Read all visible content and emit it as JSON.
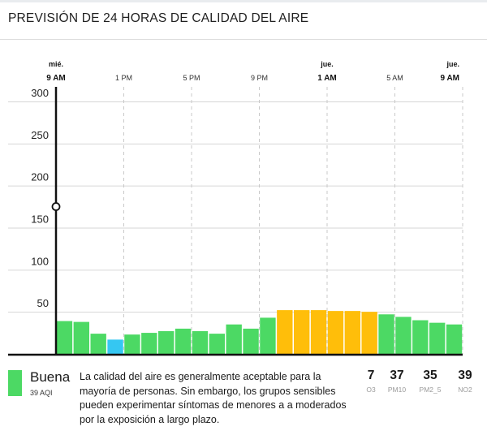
{
  "title": "PREVISIÓN DE 24 HORAS DE CALIDAD DEL AIRE",
  "chart_data": {
    "type": "bar",
    "ylim": [
      0,
      300
    ],
    "yticks": [
      50,
      100,
      150,
      200,
      250,
      300
    ],
    "xticks": [
      {
        "hour": 0,
        "day": "mié.",
        "label": "9 AM",
        "bold": true
      },
      {
        "hour": 4,
        "day": "",
        "label": "1 PM",
        "bold": false
      },
      {
        "hour": 8,
        "day": "",
        "label": "5 PM",
        "bold": false
      },
      {
        "hour": 12,
        "day": "",
        "label": "9 PM",
        "bold": false
      },
      {
        "hour": 16,
        "day": "jue.",
        "label": "1 AM",
        "bold": true
      },
      {
        "hour": 20,
        "day": "",
        "label": "5 AM",
        "bold": false
      },
      {
        "hour": 24,
        "day": "jue.",
        "label": "9 AM",
        "bold": true
      }
    ],
    "values": [
      39,
      38,
      24,
      17,
      23,
      25,
      27,
      30,
      27,
      24,
      35,
      30,
      43,
      52,
      52,
      52,
      51,
      51,
      50,
      47,
      44,
      40,
      37,
      35
    ],
    "colors": [
      "green",
      "green",
      "green",
      "blue",
      "green",
      "green",
      "green",
      "green",
      "green",
      "green",
      "green",
      "green",
      "green",
      "yellow",
      "yellow",
      "yellow",
      "yellow",
      "yellow",
      "yellow",
      "green",
      "green",
      "green",
      "green",
      "green"
    ],
    "current_marker": 175,
    "palette": {
      "green": "#4cd964",
      "blue": "#35c7f2",
      "yellow": "#ffbe0a"
    }
  },
  "current": {
    "level": "Buena",
    "aqi": "39 AQI",
    "color": "#4cd964",
    "description": "La calidad del aire es generalmente aceptable para la mayoría de personas. Sin embargo, los grupos sensibles pueden experimentar síntomas de menores a a moderados por la exposición a largo plazo."
  },
  "pollutants": [
    {
      "value": "7",
      "name": "O3"
    },
    {
      "value": "37",
      "name": "PM10"
    },
    {
      "value": "35",
      "name": "PM2_5"
    },
    {
      "value": "39",
      "name": "NO2"
    }
  ]
}
